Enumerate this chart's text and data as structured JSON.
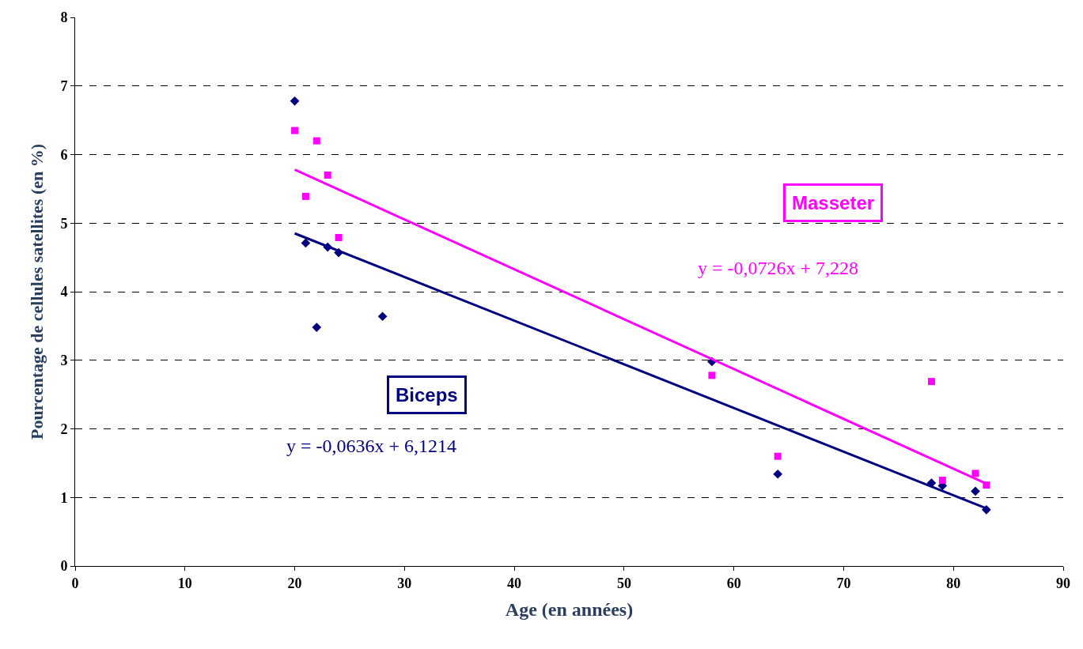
{
  "chart_data": {
    "type": "scatter",
    "xlabel": "Age (en années)",
    "ylabel": "Pourcentage de cellules satellites (en %)",
    "xlim": [
      0,
      90
    ],
    "xticks": [
      0,
      10,
      20,
      30,
      40,
      50,
      60,
      70,
      80,
      90
    ],
    "ylim": [
      0,
      8
    ],
    "yticks": [
      0,
      1,
      2,
      3,
      4,
      5,
      6,
      7,
      8
    ],
    "grid": "y",
    "legend": false,
    "series": [
      {
        "name": "Biceps",
        "color": "#000080",
        "marker": "diamond",
        "x": [
          20,
          21,
          22,
          23,
          24,
          28,
          58,
          64,
          78,
          79,
          82,
          83
        ],
        "values": [
          6.78,
          4.71,
          3.48,
          4.65,
          4.57,
          3.64,
          2.98,
          1.34,
          1.21,
          1.17,
          1.09,
          0.82
        ]
      },
      {
        "name": "Masseter",
        "color": "#ff00ff",
        "marker": "square",
        "x": [
          20,
          21,
          22,
          23,
          24,
          58,
          64,
          78,
          79,
          82,
          83
        ],
        "values": [
          6.35,
          5.39,
          6.2,
          5.7,
          4.79,
          2.78,
          1.6,
          2.69,
          1.25,
          1.35,
          1.18
        ]
      },
      {
        "type": "line",
        "color": "#000080",
        "x": [
          20,
          83
        ],
        "values": [
          4.85,
          0.84
        ]
      },
      {
        "type": "line",
        "color": "#ff00ff",
        "x": [
          20,
          83
        ],
        "values": [
          5.78,
          1.2
        ]
      }
    ],
    "annotations": [
      "y = -0,0636x + 6,1214",
      "y = -0,0726x + 7,228"
    ]
  }
}
